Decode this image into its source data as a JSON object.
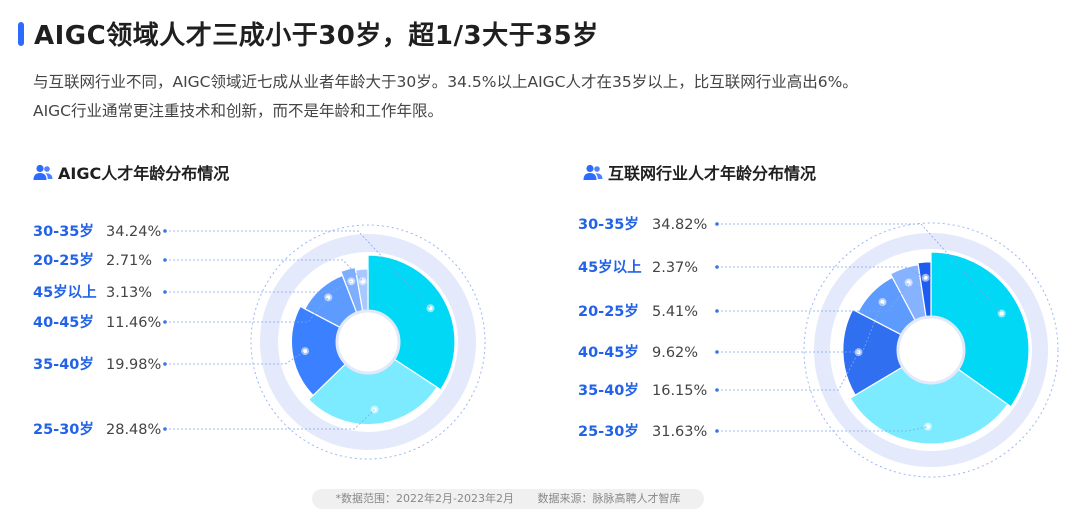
{
  "header": {
    "title": "AIGC领域人才三成小于30岁，超1/3大于35岁",
    "desc_line1": "与互联网行业不同，AIGC领域近七成从业者年龄大于30岁。34.5%以上AIGC人才在35岁以上，比互联网行业高出6%。",
    "desc_line2": "AIGC行业通常更注重技术和创新，而不是年龄和工作年限。"
  },
  "chart_data": [
    {
      "type": "pie",
      "title": "AIGC人才年龄分布情况",
      "slices": [
        {
          "label": "30-35岁",
          "value": 34.24,
          "display": "34.24%",
          "color": "#00D8F5"
        },
        {
          "label": "25-30岁",
          "value": 28.48,
          "display": "28.48%",
          "color": "#7DEBFF"
        },
        {
          "label": "35-40岁",
          "value": 19.98,
          "display": "19.98%",
          "color": "#3A80FF"
        },
        {
          "label": "40-45岁",
          "value": 11.46,
          "display": "11.46%",
          "color": "#5E9BFF"
        },
        {
          "label": "45岁以上",
          "value": 3.13,
          "display": "3.13%",
          "color": "#7FAEFF"
        },
        {
          "label": "20-25岁",
          "value": 2.71,
          "display": "2.71%",
          "color": "#A8C8FF"
        }
      ],
      "legend_order": [
        "30-35岁",
        "20-25岁",
        "45岁以上",
        "40-45岁",
        "35-40岁",
        "25-30岁"
      ]
    },
    {
      "type": "pie",
      "title": "互联网行业人才年龄分布情况",
      "slices": [
        {
          "label": "30-35岁",
          "value": 34.82,
          "display": "34.82%",
          "color": "#00D8F5"
        },
        {
          "label": "25-30岁",
          "value": 31.63,
          "display": "31.63%",
          "color": "#7DEBFF"
        },
        {
          "label": "35-40岁",
          "value": 16.15,
          "display": "16.15%",
          "color": "#2F6FF0"
        },
        {
          "label": "40-45岁",
          "value": 9.62,
          "display": "9.62%",
          "color": "#5E9BFF"
        },
        {
          "label": "20-25岁",
          "value": 5.41,
          "display": "5.41%",
          "color": "#86B2FF"
        },
        {
          "label": "45岁以上",
          "value": 2.37,
          "display": "2.37%",
          "color": "#1E5BF0"
        }
      ],
      "legend_order": [
        "30-35岁",
        "45岁以上",
        "20-25岁",
        "40-45岁",
        "35-40岁",
        "25-30岁"
      ]
    }
  ],
  "footer": {
    "range": "*数据范围：2022年2月-2023年2月",
    "source": "数据来源：脉脉高聘人才智库"
  },
  "colors": {
    "accent": "#2D6BFF",
    "label_blue": "#2262E8",
    "ring": "#E4EAFB"
  },
  "icons": [
    "user-group-icon"
  ]
}
